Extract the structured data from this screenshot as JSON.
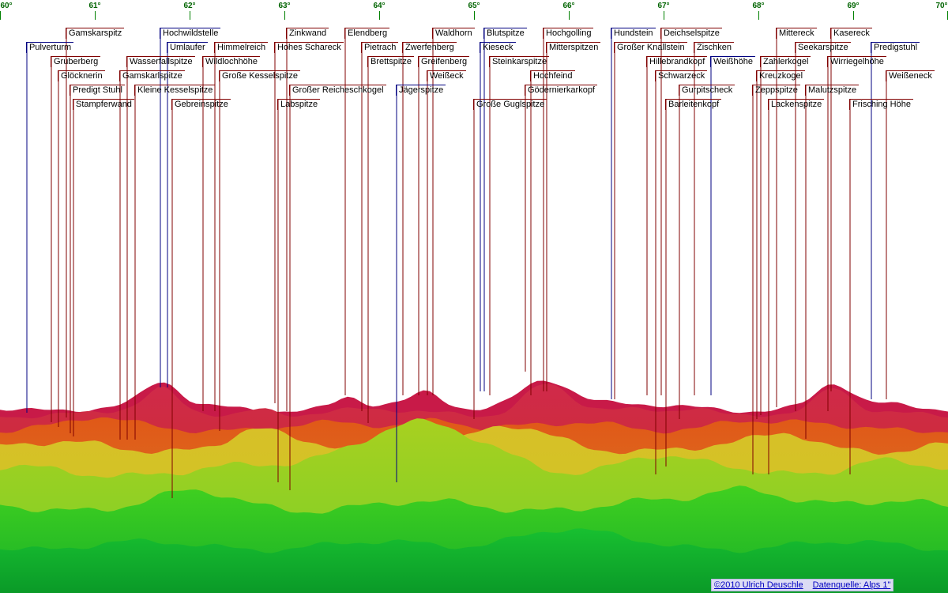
{
  "degree_scale": [
    "60°",
    "61°",
    "62°",
    "63°",
    "64°",
    "65°",
    "66°",
    "67°",
    "68°",
    "69°",
    "70°"
  ],
  "peaks": [
    {
      "name": "Pulverturm",
      "color": "#000080"
    },
    {
      "name": "Gamskarspitz",
      "color": "#800000"
    },
    {
      "name": "Gruberberg",
      "color": "#800000"
    },
    {
      "name": "Glöcknerin",
      "color": "#800000"
    },
    {
      "name": "Predigt Stuhl",
      "color": "#800000"
    },
    {
      "name": "Stampferwand",
      "color": "#800000"
    },
    {
      "name": "Wasserfallspitze",
      "color": "#800000"
    },
    {
      "name": "Gamskarlspitze",
      "color": "#800000"
    },
    {
      "name": "Kleine Kesselspitze",
      "color": "#800000"
    },
    {
      "name": "Hochwildstelle",
      "color": "#000080"
    },
    {
      "name": "Umlaufer",
      "color": "#000080"
    },
    {
      "name": "Gebreinspitze",
      "color": "#800000"
    },
    {
      "name": "Himmelreich",
      "color": "#800000"
    },
    {
      "name": "Wildlochhöhe",
      "color": "#800000"
    },
    {
      "name": "Große Kesselspitze",
      "color": "#800000"
    },
    {
      "name": "Zinkwand",
      "color": "#800000"
    },
    {
      "name": "Hohes Schareck",
      "color": "#800000"
    },
    {
      "name": "Labspitze",
      "color": "#800000"
    },
    {
      "name": "Großer Reicheschkogel",
      "color": "#800000"
    },
    {
      "name": "Elendberg",
      "color": "#800000"
    },
    {
      "name": "Pietrach",
      "color": "#800000"
    },
    {
      "name": "Brettspitze",
      "color": "#800000"
    },
    {
      "name": "Zwerfenberg",
      "color": "#800000"
    },
    {
      "name": "Jägerspitze",
      "color": "#000080"
    },
    {
      "name": "Greifenberg",
      "color": "#800000"
    },
    {
      "name": "Waldhorn",
      "color": "#800000"
    },
    {
      "name": "Weißeck",
      "color": "#800000"
    },
    {
      "name": "Blutspitze",
      "color": "#000080"
    },
    {
      "name": "Kieseck",
      "color": "#000080"
    },
    {
      "name": "Steinkarspitze",
      "color": "#800000"
    },
    {
      "name": "Große Guglspitze",
      "color": "#800000"
    },
    {
      "name": "Hochgolling",
      "color": "#800000"
    },
    {
      "name": "Mitterspitzen",
      "color": "#800000"
    },
    {
      "name": "Hochfeind",
      "color": "#800000"
    },
    {
      "name": "Gödernierkarkopf",
      "color": "#800000"
    },
    {
      "name": "Hundstein",
      "color": "#000080"
    },
    {
      "name": "Großer Knallstein",
      "color": "#800000"
    },
    {
      "name": "Deichselspitze",
      "color": "#800000"
    },
    {
      "name": "Hillebrandkopf",
      "color": "#800000"
    },
    {
      "name": "Schwarzeck",
      "color": "#800000"
    },
    {
      "name": "Zischken",
      "color": "#800000"
    },
    {
      "name": "Weißhöhe",
      "color": "#000080"
    },
    {
      "name": "Gurpitscheck",
      "color": "#800000"
    },
    {
      "name": "Barleitenkopf",
      "color": "#800000"
    },
    {
      "name": "Mittereck",
      "color": "#800000"
    },
    {
      "name": "Zahlerkogel",
      "color": "#800000"
    },
    {
      "name": "Kreuzkogel",
      "color": "#800000"
    },
    {
      "name": "Zeppspitze",
      "color": "#800000"
    },
    {
      "name": "Lackenspitze",
      "color": "#800000"
    },
    {
      "name": "Kasereck",
      "color": "#800000"
    },
    {
      "name": "Seekarspitze",
      "color": "#800000"
    },
    {
      "name": "Wirriegelhöhe",
      "color": "#800000"
    },
    {
      "name": "Malutzspitze",
      "color": "#800000"
    },
    {
      "name": "Predigstuhl",
      "color": "#000080"
    },
    {
      "name": "Weißeneck",
      "color": "#800000"
    },
    {
      "name": "Frisching Höhe",
      "color": "#800000"
    }
  ],
  "credit": {
    "copyright": "©2010 Ulrich Deuschle",
    "source": "Datenquelle: Alps 1\""
  }
}
